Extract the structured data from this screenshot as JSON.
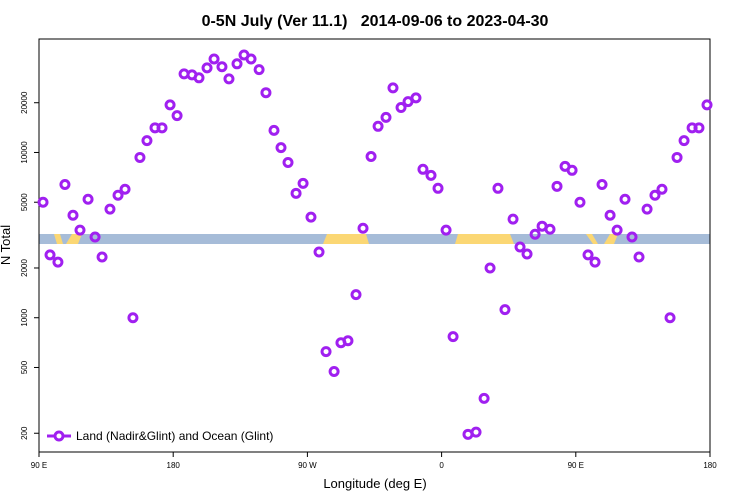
{
  "chart_data": {
    "type": "scatter",
    "title": "0-5N July (Ver 11.1)   2014-09-06 to 2023-04-30",
    "x_label": "Longitude (deg E)",
    "y_label": "N Total",
    "x": [
      92.7,
      97.4,
      102.7,
      107.4,
      112.8,
      117.5,
      122.9,
      127.6,
      132.3,
      137.6,
      143,
      147.7,
      153,
      157.7,
      162.4,
      167.8,
      172.5,
      177.9,
      182.6,
      187.3,
      192.6,
      197.3,
      202.7,
      207.4,
      212.7,
      217.4,
      222.8,
      227.5,
      232.2,
      237.6,
      242.2,
      247.6,
      252.3,
      257,
      262.4,
      267.1,
      272.4,
      277.8,
      282.5,
      287.9,
      292.5,
      297.2,
      302.6,
      307.3,
      312.7,
      317.4,
      322.7,
      327.4,
      332.8,
      337.5,
      342.8,
      347.5,
      352.9,
      357.6,
      363,
      367.7,
      377.7,
      383.1,
      388.5,
      392.5,
      397.8,
      402.5,
      407.9,
      412.6,
      417.3,
      422.7,
      427.4,
      432.7,
      437.4,
      442.8,
      447.5,
      452.8,
      458.2,
      462.9,
      467.6,
      473,
      477.7,
      483,
      487.7,
      492.4,
      497.8,
      503.1,
      507.8,
      513.2,
      517.9,
      522.6,
      528,
      532.6,
      538
    ],
    "series": [
      {
        "name": "Land (Nadir&Glint) and Ocean (Glint)",
        "color": "#a020f0",
        "values": [
          5000,
          2400,
          2170,
          6400,
          4170,
          3390,
          5210,
          3080,
          2330,
          4540,
          5510,
          5990,
          1000,
          9330,
          11800,
          14100,
          14100,
          19400,
          16700,
          29900,
          29500,
          28300,
          32500,
          36800,
          33000,
          27900,
          34400,
          38900,
          36800,
          31700,
          23000,
          13600,
          10700,
          8700,
          5660,
          6500,
          4060,
          2500,
          624,
          473,
          706,
          726,
          1380,
          3480,
          9460,
          14400,
          16300,
          24600,
          18700,
          20300,
          21400,
          7910,
          7270,
          6070,
          3390,
          769,
          197,
          203,
          325,
          2000,
          6070,
          1120,
          3950,
          2680,
          2430,
          3200,
          3580,
          3430,
          6240,
          8240,
          7800,
          5000,
          2400,
          2170,
          6400,
          4170,
          3390,
          5210,
          3080,
          2330,
          4540,
          5510,
          5990,
          1000,
          9330,
          11800,
          14100,
          14100,
          19400
        ]
      }
    ],
    "xlim": [
      90,
      540
    ],
    "xticks": [
      {
        "value": 90,
        "label": "90 E"
      },
      180,
      {
        "value": 270,
        "label": "90 W"
      },
      {
        "value": 360,
        "label": "0"
      },
      {
        "value": 450,
        "label": "90 E"
      },
      {
        "value": 540,
        "label": "180"
      }
    ],
    "ylim": [
      154,
      48600
    ],
    "yticks": [
      200,
      500,
      1000,
      2000,
      5000,
      10000,
      20000
    ],
    "y_scale": "log",
    "legend": "lower left"
  }
}
